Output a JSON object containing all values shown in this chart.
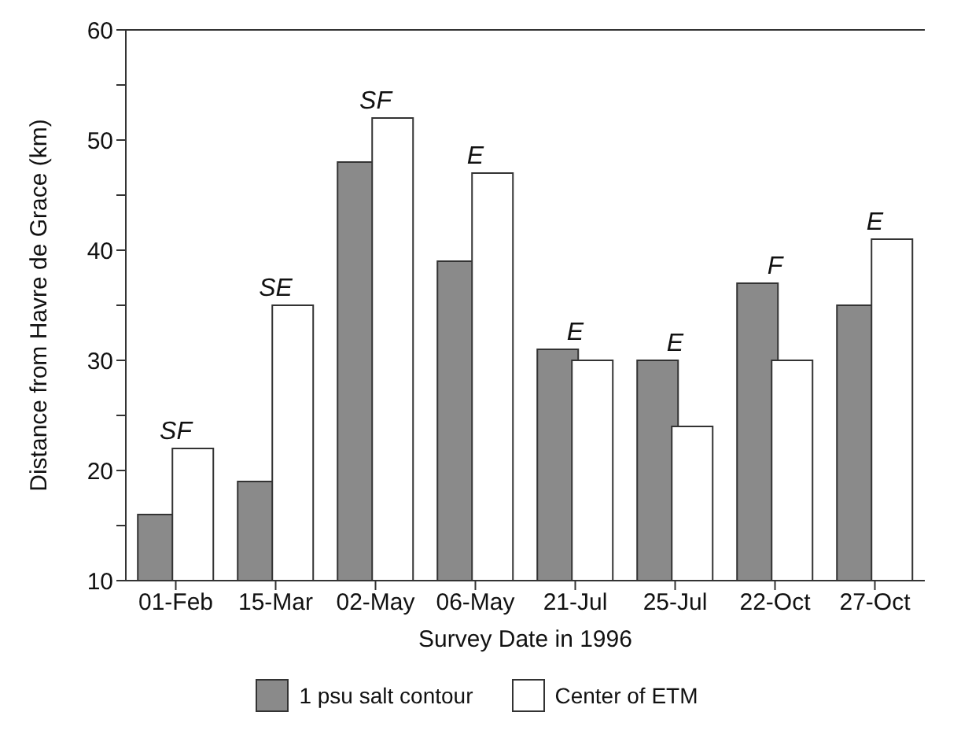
{
  "chart_data": {
    "type": "bar",
    "xlabel": "Survey Date in 1996",
    "ylabel": "Distance from Havre de Grace (km)",
    "categories": [
      "01-Feb",
      "15-Mar",
      "02-May",
      "06-May",
      "21-Jul",
      "25-Jul",
      "22-Oct",
      "27-Oct"
    ],
    "series": [
      {
        "name": "1 psu salt contour",
        "color": "#8a8a8a",
        "values": [
          16,
          19,
          48,
          39,
          31,
          30,
          37,
          35
        ]
      },
      {
        "name": "Center of ETM",
        "color": "#ffffff",
        "values": [
          22,
          35,
          52,
          47,
          30,
          24,
          30,
          41
        ]
      }
    ],
    "ylim": [
      10,
      60
    ],
    "yticks": [
      10,
      {
        "value": 15,
        "label": null
      },
      20,
      {
        "value": 25,
        "label": null
      },
      30,
      {
        "value": 35,
        "label": null
      },
      40,
      {
        "value": 45,
        "label": null
      },
      50,
      {
        "value": 55,
        "label": null
      },
      60
    ],
    "annotations": [
      {
        "text": "SF",
        "x": "01-Feb",
        "y": 22
      },
      {
        "text": "SE",
        "x": "15-Mar",
        "y": 35
      },
      {
        "text": "SF",
        "x": "02-May",
        "y": 52
      },
      {
        "text": "E",
        "x": "06-May",
        "y": 47
      },
      {
        "text": "E",
        "x": "21-Jul",
        "y": 31
      },
      {
        "text": "E",
        "x": "25-Jul",
        "y": 30
      },
      {
        "text": "F",
        "x": "22-Oct",
        "y": 37
      },
      {
        "text": "E",
        "x": "27-Oct",
        "y": 41
      }
    ],
    "legend": "bottom",
    "grid": false
  }
}
